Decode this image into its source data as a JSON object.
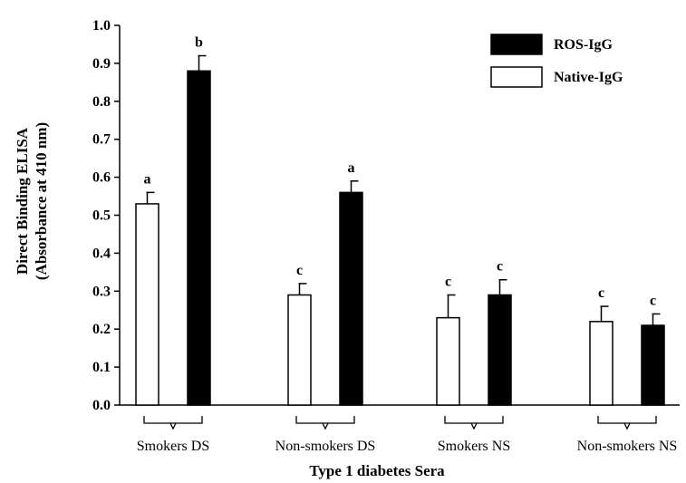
{
  "chart_data": {
    "type": "bar",
    "title": "",
    "xlabel": "Type 1 diabetes Sera",
    "ylabel_line1": "Direct Binding ELISA",
    "ylabel_line2": "(Absorbance at 410 nm)",
    "ylim": [
      0,
      1.0
    ],
    "yticks": [
      "0.0",
      "0.1",
      "0.2",
      "0.3",
      "0.4",
      "0.5",
      "0.6",
      "0.7",
      "0.8",
      "0.9",
      "1.0"
    ],
    "grid": false,
    "legend_position": "top-right",
    "categories": [
      "Smokers DS",
      "Non-smokers DS",
      "Smokers NS",
      "Non-smokers NS"
    ],
    "series": [
      {
        "name": "Native-IgG",
        "color": "#ffffff",
        "values": [
          0.53,
          0.29,
          0.23,
          0.22
        ],
        "errors": [
          0.03,
          0.03,
          0.06,
          0.04
        ],
        "sig_labels": [
          "a",
          "c",
          "c",
          "c"
        ]
      },
      {
        "name": "ROS-IgG",
        "color": "#000000",
        "values": [
          0.88,
          0.56,
          0.29,
          0.21
        ],
        "errors": [
          0.04,
          0.03,
          0.04,
          0.03
        ],
        "sig_labels": [
          "b",
          "a",
          "c",
          "c"
        ]
      }
    ]
  }
}
